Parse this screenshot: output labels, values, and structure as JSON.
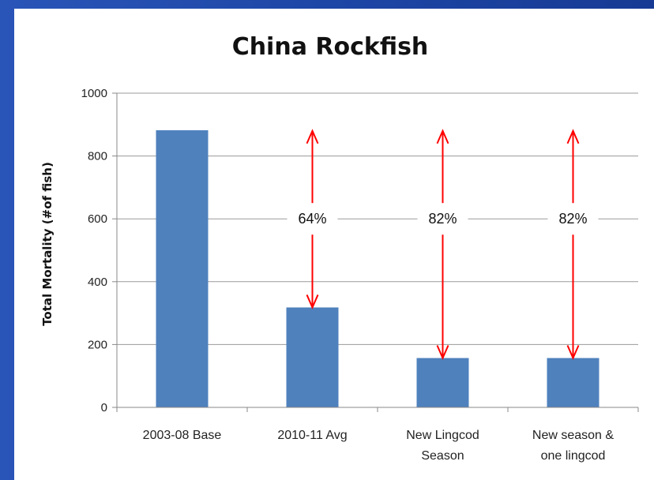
{
  "chart_data": {
    "type": "bar",
    "title": "China Rockfish",
    "xlabel": "",
    "ylabel": "Total Mortality (#of fish)",
    "ylim": [
      0,
      1000
    ],
    "yticks": [
      "0",
      "200",
      "400",
      "600",
      "800",
      "1000"
    ],
    "categories": [
      [
        "2003-08 Base"
      ],
      [
        "2010-11 Avg"
      ],
      [
        "New Lingcod",
        "Season"
      ],
      [
        "New season &",
        "one lingcod"
      ]
    ],
    "values": [
      882,
      318,
      157,
      157
    ],
    "grid": true,
    "bar_color": "#4f81bd",
    "annotations": [
      {
        "category_index": 1,
        "text": "64%",
        "from": 880,
        "to": 318
      },
      {
        "category_index": 2,
        "text": "82%",
        "from": 880,
        "to": 157
      },
      {
        "category_index": 3,
        "text": "82%",
        "from": 880,
        "to": 157
      }
    ],
    "annotation_color": "#ff0000"
  }
}
